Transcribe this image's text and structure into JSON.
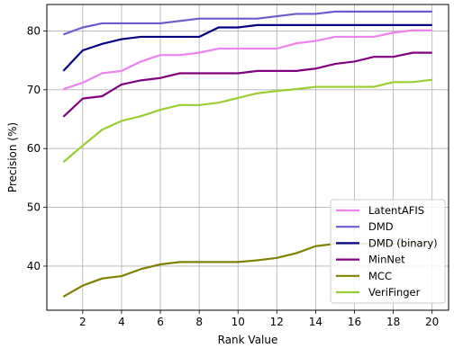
{
  "chart_data": {
    "type": "line",
    "title": "",
    "xlabel": "Rank Value",
    "ylabel": "Precision (%)",
    "x": [
      1,
      2,
      3,
      4,
      5,
      6,
      7,
      8,
      9,
      10,
      11,
      12,
      13,
      14,
      15,
      16,
      17,
      18,
      19,
      20
    ],
    "xticks": [
      2,
      4,
      6,
      8,
      10,
      12,
      14,
      16,
      18,
      20
    ],
    "yticks": [
      40,
      50,
      60,
      70,
      80
    ],
    "xlim": [
      0.15,
      20.85
    ],
    "ylim": [
      32.5,
      84.5
    ],
    "grid": true,
    "legend_position": "bottom-right",
    "series": [
      {
        "name": "LatentAFIS",
        "color": "#ee82ee",
        "values": [
          70.1,
          71.2,
          72.8,
          73.2,
          74.8,
          75.9,
          75.9,
          76.3,
          77.0,
          77.0,
          77.0,
          77.0,
          77.9,
          78.3,
          79.0,
          79.0,
          79.0,
          79.7,
          80.1,
          80.1
        ]
      },
      {
        "name": "DMD",
        "color": "#6a5acd",
        "values": [
          79.4,
          80.6,
          81.3,
          81.3,
          81.3,
          81.3,
          81.7,
          82.1,
          82.1,
          82.1,
          82.1,
          82.5,
          82.9,
          82.9,
          83.3,
          83.3,
          83.3,
          83.3,
          83.3,
          83.3
        ]
      },
      {
        "name": "DMD (binary)",
        "color": "#000080",
        "values": [
          73.2,
          76.7,
          77.8,
          78.6,
          79.0,
          79.0,
          79.0,
          79.0,
          80.6,
          80.6,
          81.0,
          81.0,
          81.0,
          81.0,
          81.0,
          81.0,
          81.0,
          81.0,
          81.0,
          81.0
        ]
      },
      {
        "name": "MinNet",
        "color": "#800080",
        "values": [
          65.4,
          68.5,
          68.9,
          70.9,
          71.6,
          72.0,
          72.8,
          72.8,
          72.8,
          72.8,
          73.2,
          73.2,
          73.2,
          73.6,
          74.4,
          74.8,
          75.6,
          75.6,
          76.3,
          76.3
        ]
      },
      {
        "name": "MCC",
        "color": "#808000",
        "values": [
          34.8,
          36.7,
          37.9,
          38.3,
          39.5,
          40.3,
          40.7,
          40.7,
          40.7,
          40.7,
          41.0,
          41.4,
          42.2,
          43.4,
          43.8,
          43.8,
          43.8,
          43.8,
          44.0,
          44.0
        ]
      },
      {
        "name": "VeriFinger",
        "color": "#9acd32",
        "values": [
          57.7,
          60.5,
          63.2,
          64.7,
          65.5,
          66.6,
          67.4,
          67.4,
          67.8,
          68.6,
          69.4,
          69.8,
          70.1,
          70.5,
          70.5,
          70.5,
          70.5,
          71.3,
          71.3,
          71.7
        ]
      }
    ]
  }
}
